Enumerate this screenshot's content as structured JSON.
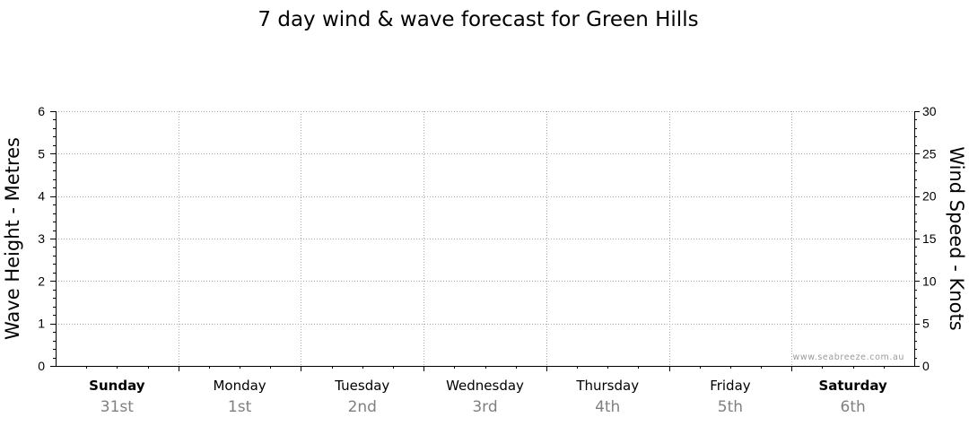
{
  "chart_data": {
    "type": "line",
    "title": "7 day wind & wave forecast for Green Hills",
    "ylabel": "Wave Height - Metres",
    "y2label": "Wind Speed - Knots",
    "ylim": [
      0,
      6
    ],
    "y2lim": [
      0,
      30
    ],
    "yticks": [
      "0",
      "1",
      "2",
      "3",
      "4",
      "5",
      "6"
    ],
    "y2ticks": [
      "0",
      "5",
      "10",
      "15",
      "20",
      "25",
      "30"
    ],
    "grid": true,
    "days": [
      {
        "name": "Sunday",
        "date": "31st",
        "bold": true
      },
      {
        "name": "Monday",
        "date": "1st",
        "bold": false
      },
      {
        "name": "Tuesday",
        "date": "2nd",
        "bold": false
      },
      {
        "name": "Wednesday",
        "date": "3rd",
        "bold": false
      },
      {
        "name": "Thursday",
        "date": "4th",
        "bold": false
      },
      {
        "name": "Friday",
        "date": "5th",
        "bold": false
      },
      {
        "name": "Saturday",
        "date": "6th",
        "bold": true
      }
    ],
    "series": []
  },
  "watermark": "www.seabreeze.com.au"
}
